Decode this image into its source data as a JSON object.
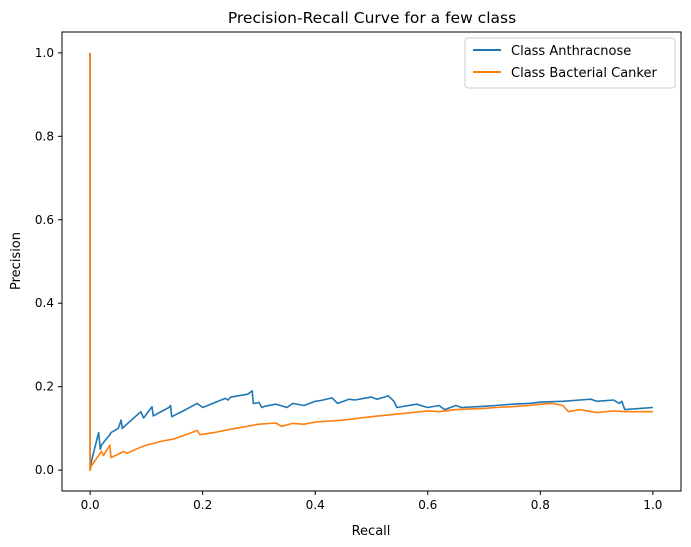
{
  "chart_data": {
    "type": "line",
    "title": "Precision-Recall Curve for a few class",
    "xlabel": "Recall",
    "ylabel": "Precision",
    "xlim": [
      -0.05,
      1.05
    ],
    "ylim": [
      -0.05,
      1.05
    ],
    "xticks": [
      0.0,
      0.2,
      0.4,
      0.6,
      0.8,
      1.0
    ],
    "xtick_labels": [
      "0.0",
      "0.2",
      "0.4",
      "0.6",
      "0.8",
      "1.0"
    ],
    "yticks": [
      0.0,
      0.2,
      0.4,
      0.6,
      0.8,
      1.0
    ],
    "ytick_labels": [
      "0.0",
      "0.2",
      "0.4",
      "0.6",
      "0.8",
      "1.0"
    ],
    "grid": false,
    "legend_position": "top-right",
    "series": [
      {
        "name": "Class Anthracnose",
        "color": "#1f77b4",
        "x": [
          0.0,
          0.0,
          0.002,
          0.015,
          0.018,
          0.02,
          0.035,
          0.037,
          0.05,
          0.055,
          0.057,
          0.09,
          0.095,
          0.11,
          0.112,
          0.14,
          0.143,
          0.145,
          0.17,
          0.19,
          0.2,
          0.24,
          0.245,
          0.25,
          0.28,
          0.288,
          0.29,
          0.3,
          0.305,
          0.31,
          0.33,
          0.35,
          0.36,
          0.38,
          0.4,
          0.41,
          0.43,
          0.44,
          0.46,
          0.47,
          0.5,
          0.51,
          0.53,
          0.54,
          0.545,
          0.58,
          0.6,
          0.62,
          0.63,
          0.65,
          0.66,
          0.7,
          0.72,
          0.75,
          0.78,
          0.8,
          0.84,
          0.87,
          0.89,
          0.9,
          0.93,
          0.94,
          0.945,
          0.95,
          1.0
        ],
        "y": [
          1.0,
          0.0,
          0.02,
          0.09,
          0.05,
          0.06,
          0.085,
          0.09,
          0.1,
          0.12,
          0.1,
          0.14,
          0.125,
          0.152,
          0.13,
          0.15,
          0.155,
          0.128,
          0.145,
          0.16,
          0.15,
          0.172,
          0.168,
          0.175,
          0.182,
          0.19,
          0.16,
          0.162,
          0.15,
          0.153,
          0.158,
          0.15,
          0.16,
          0.155,
          0.165,
          0.167,
          0.173,
          0.16,
          0.17,
          0.168,
          0.175,
          0.17,
          0.178,
          0.165,
          0.15,
          0.158,
          0.15,
          0.155,
          0.145,
          0.155,
          0.15,
          0.153,
          0.155,
          0.158,
          0.16,
          0.163,
          0.165,
          0.168,
          0.17,
          0.165,
          0.168,
          0.16,
          0.165,
          0.145,
          0.15
        ]
      },
      {
        "name": "Class Bacterial Canker",
        "color": "#ff7f0e",
        "x": [
          0.0,
          0.0,
          0.002,
          0.02,
          0.024,
          0.035,
          0.037,
          0.06,
          0.065,
          0.09,
          0.1,
          0.13,
          0.15,
          0.17,
          0.19,
          0.195,
          0.22,
          0.25,
          0.27,
          0.3,
          0.33,
          0.34,
          0.36,
          0.38,
          0.4,
          0.45,
          0.5,
          0.55,
          0.6,
          0.62,
          0.65,
          0.7,
          0.72,
          0.75,
          0.78,
          0.8,
          0.82,
          0.84,
          0.85,
          0.87,
          0.9,
          0.93,
          0.95,
          1.0
        ],
        "y": [
          1.0,
          0.0,
          0.01,
          0.045,
          0.035,
          0.06,
          0.03,
          0.045,
          0.04,
          0.055,
          0.06,
          0.07,
          0.075,
          0.085,
          0.095,
          0.085,
          0.09,
          0.098,
          0.103,
          0.11,
          0.113,
          0.105,
          0.112,
          0.11,
          0.115,
          0.12,
          0.128,
          0.135,
          0.142,
          0.14,
          0.145,
          0.148,
          0.15,
          0.152,
          0.155,
          0.158,
          0.16,
          0.155,
          0.14,
          0.145,
          0.138,
          0.142,
          0.14,
          0.14
        ]
      }
    ]
  }
}
